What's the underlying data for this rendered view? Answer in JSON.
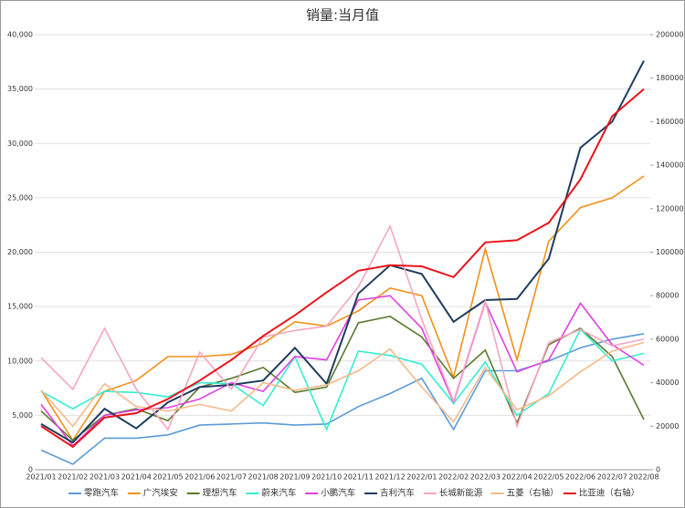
{
  "chart_data": {
    "type": "line",
    "title": "销量:当月值",
    "categories": [
      "2021/01",
      "2021/02",
      "2021/03",
      "2021/04",
      "2021/05",
      "2021/06",
      "2021/07",
      "2021/08",
      "2021/09",
      "2021/10",
      "2021/11",
      "2021/12",
      "2022/01",
      "2022/02",
      "2022/03",
      "2022/04",
      "2022/05",
      "2022/06",
      "2022/07",
      "2022/08"
    ],
    "ylim": [
      0,
      40000
    ],
    "yticks": [
      {
        "value": 0,
        "label": "0"
      },
      {
        "value": 5000,
        "label": "5,000"
      },
      {
        "value": 10000,
        "label": "10,000"
      },
      {
        "value": 15000,
        "label": "15,000"
      },
      {
        "value": 20000,
        "label": "20,000"
      },
      {
        "value": 25000,
        "label": "25,000"
      },
      {
        "value": 30000,
        "label": "30,000"
      },
      {
        "value": 35000,
        "label": "35,000"
      },
      {
        "value": 40000,
        "label": "40,000"
      }
    ],
    "y2lim": [
      0,
      200000
    ],
    "y2ticks": [
      0,
      20000,
      40000,
      60000,
      80000,
      100000,
      120000,
      140000,
      160000,
      180000,
      200000
    ],
    "series": [
      {
        "name": "零跑汽车",
        "color": "#5b9bd5",
        "values": [
          1800,
          500,
          2900,
          2900,
          3200,
          4100,
          4200,
          4300,
          4100,
          4200,
          5800,
          7000,
          8400,
          3700,
          9100,
          9100,
          10000,
          11200,
          12000,
          12500
        ]
      },
      {
        "name": "广汽埃安",
        "color": "#f0901a",
        "values": [
          7300,
          2700,
          7200,
          8200,
          10400,
          10400,
          10600,
          11600,
          13600,
          13200,
          14600,
          16700,
          16000,
          8500,
          20300,
          10100,
          21000,
          24100,
          25000,
          27000
        ]
      },
      {
        "name": "理想汽车",
        "color": "#5a7a2e",
        "values": [
          5400,
          2700,
          5000,
          5600,
          4500,
          7600,
          8400,
          9400,
          7100,
          7600,
          13500,
          14100,
          12200,
          8400,
          11000,
          4300,
          11500,
          13000,
          10400,
          4600
        ]
      },
      {
        "name": "蔚来汽车",
        "color": "#33eed0",
        "values": [
          7200,
          5600,
          7200,
          7100,
          6700,
          8000,
          7900,
          5900,
          10400,
          3700,
          10900,
          10500,
          9700,
          6100,
          9900,
          5000,
          7000,
          12900,
          10000,
          10700
        ]
      },
      {
        "name": "小鹏汽车",
        "color": "#e040e0",
        "values": [
          6000,
          2200,
          5000,
          5500,
          5700,
          6500,
          8000,
          7200,
          10400,
          10100,
          15600,
          16000,
          13000,
          6200,
          15400,
          9000,
          10100,
          15300,
          11500,
          9600
        ]
      },
      {
        "name": "吉利汽车",
        "color": "#1f3c5c",
        "values": [
          21000,
          12500,
          28000,
          19000,
          31000,
          38000,
          39000,
          41000,
          56000,
          39500,
          81000,
          94000,
          90000,
          68000,
          78000,
          78500,
          97000,
          148000,
          160000,
          188000
        ],
        "axis": "y2"
      },
      {
        "name": "长城新能源",
        "color": "#f4a6c0",
        "values": [
          10300,
          7400,
          13000,
          7400,
          3700,
          10800,
          7400,
          12200,
          12800,
          13200,
          16800,
          22400,
          13800,
          6300,
          15500,
          4000,
          11700,
          12900,
          11400,
          12000
        ]
      },
      {
        "name": "五菱（右轴）",
        "color": "#f5b98a",
        "values": [
          36500,
          20000,
          39500,
          29000,
          27000,
          30000,
          27000,
          40000,
          36500,
          39000,
          45500,
          55500,
          38000,
          22000,
          47000,
          27500,
          34000,
          45000,
          54500,
          58500
        ],
        "axis": "y2"
      },
      {
        "name": "比亚迪（右轴）",
        "color": "#e8141c",
        "values": [
          20000,
          10500,
          24000,
          26000,
          32500,
          41000,
          50500,
          61500,
          71000,
          81500,
          91500,
          94000,
          93500,
          88500,
          104500,
          105500,
          113500,
          133500,
          162500,
          175000
        ],
        "axis": "y2"
      }
    ],
    "grid": true
  }
}
